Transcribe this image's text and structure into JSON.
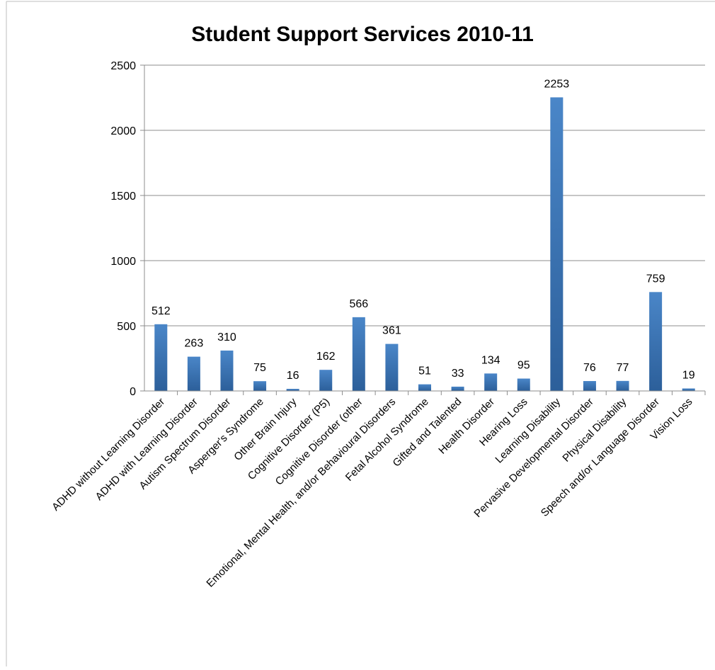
{
  "chart_data": {
    "type": "bar",
    "title": "Student Support Services 2010-11",
    "xlabel": "",
    "ylabel": "",
    "ylim": [
      0,
      2500
    ],
    "yticks": [
      "0",
      "500",
      "1000",
      "1500",
      "2000",
      "2500"
    ],
    "grid": true,
    "legend": "none",
    "bar_color": "#4a86c8",
    "bar_color_dark": "#2c5f9a",
    "categories": [
      "ADHD without  Learning Disorder",
      "ADHD with  Learning Disorder",
      "Autism Spectrum Disorder",
      "Asperger's Syndrome",
      "Other Brain Injury",
      "Cognitive Disorder (P5)",
      "Cognitive Disorder (other",
      "Emotional, Mental Health, and/or Behavioural Disorders",
      "Fetal Alcohol Syndrome",
      "Gifted and Talented",
      "Health Disorder",
      "Hearing Loss",
      "Learning Disability",
      "Pervasive Developmental Disorder",
      "Physical Disability",
      "Speech and/or Language Disorder",
      "Vision Loss"
    ],
    "values": [
      512,
      263,
      310,
      75,
      16,
      162,
      566,
      361,
      51,
      33,
      134,
      95,
      2253,
      76,
      77,
      759,
      19
    ],
    "data_labels": [
      "512",
      "263",
      "310",
      "75",
      "16",
      "162",
      "566",
      "361",
      "51",
      "33",
      "134",
      "95",
      "2253",
      "76",
      "77",
      "759",
      "19"
    ]
  }
}
